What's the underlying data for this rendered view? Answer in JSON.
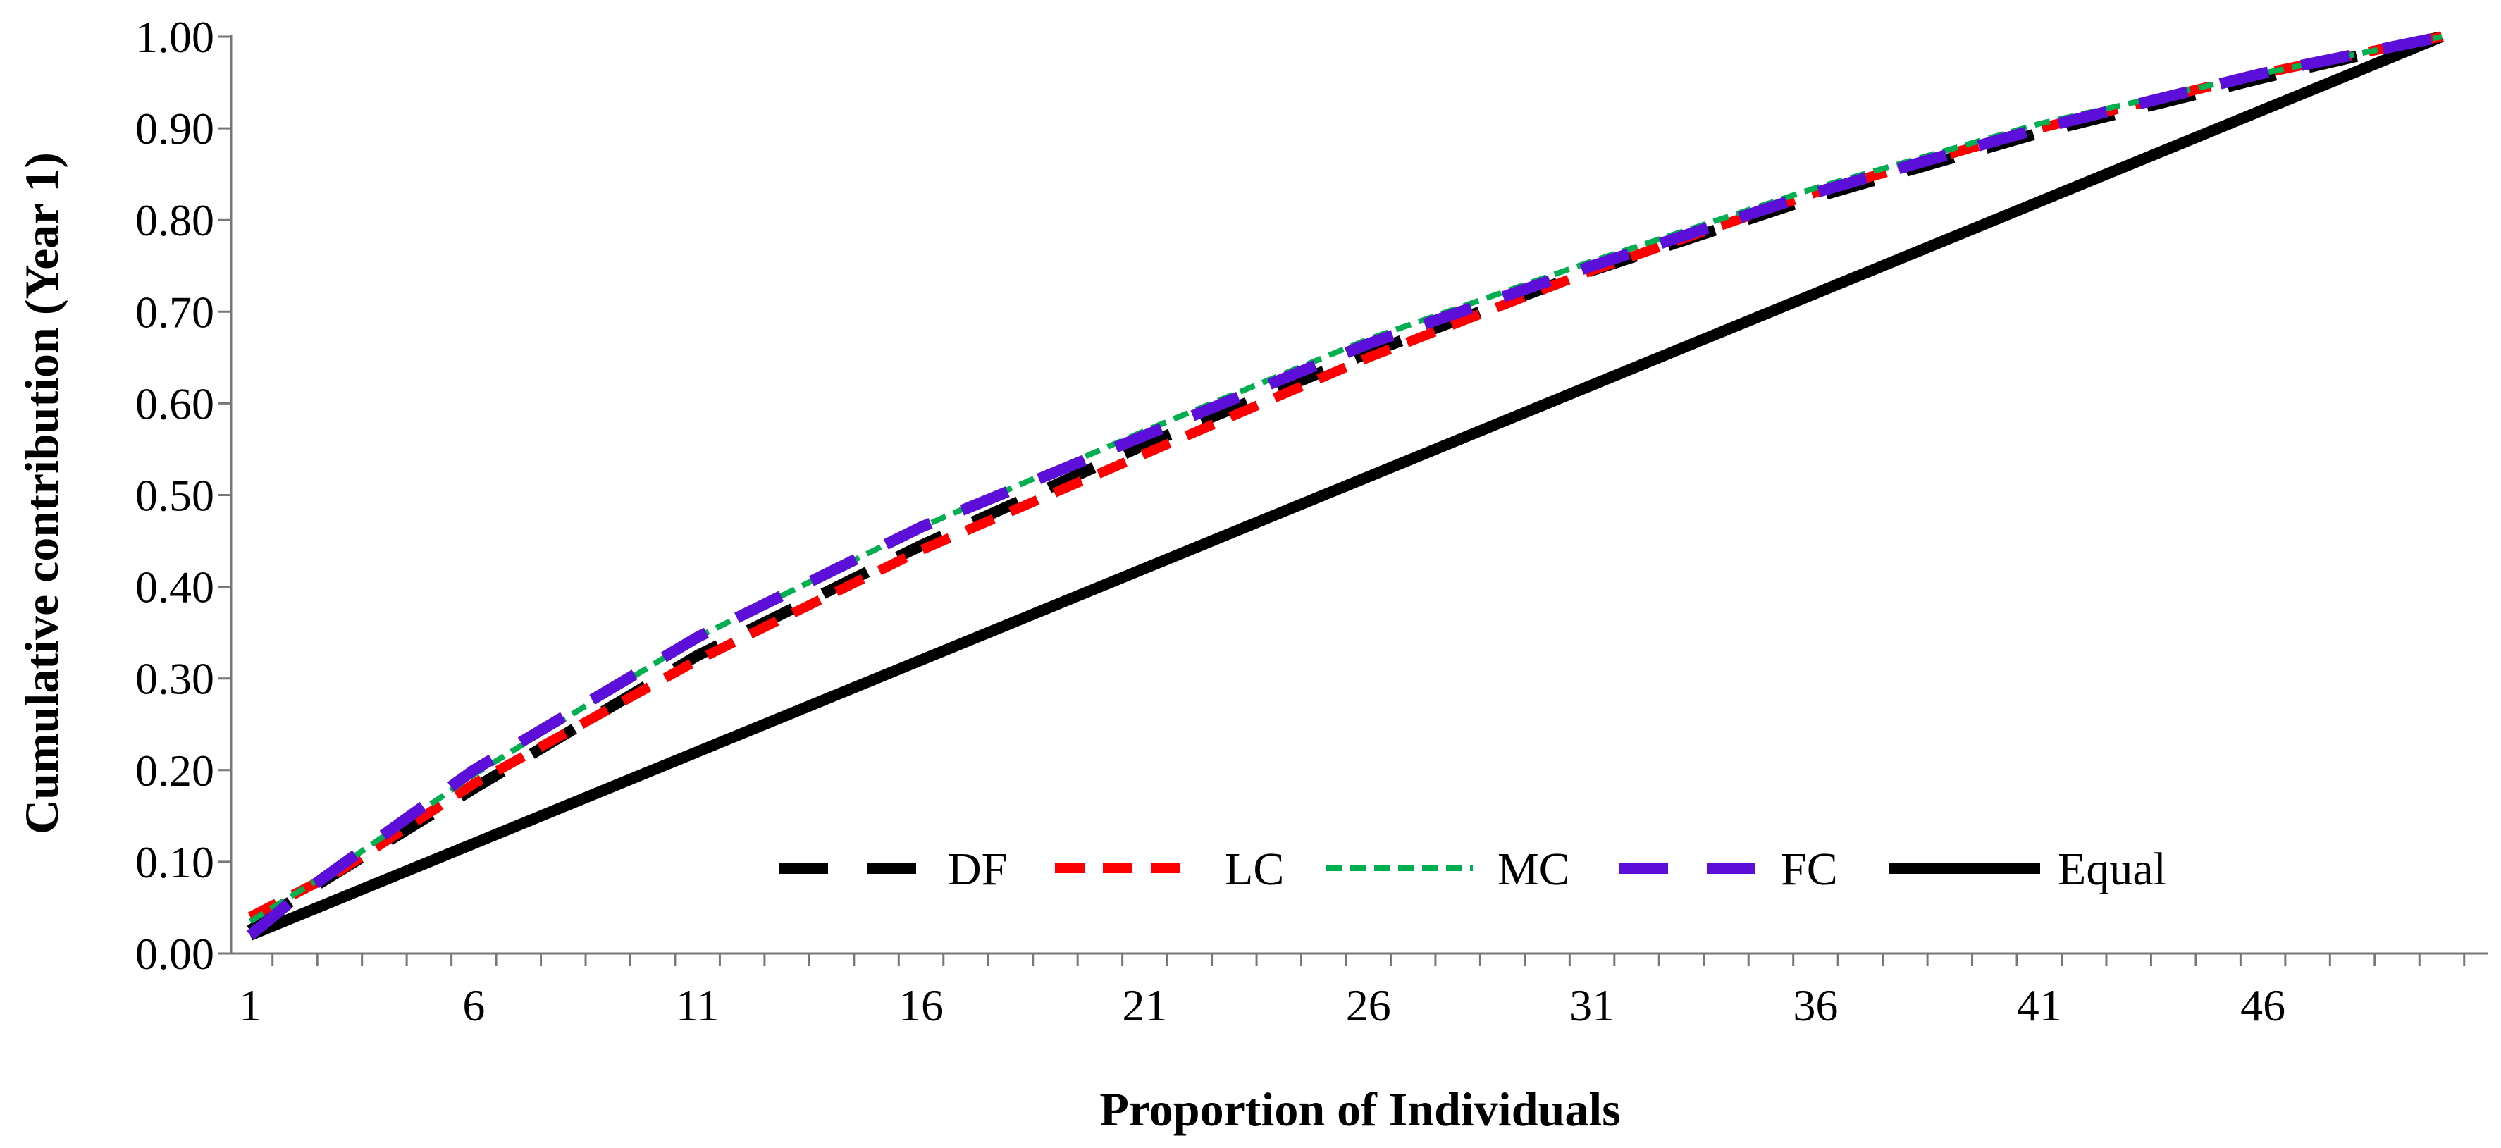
{
  "chart_data": {
    "type": "line",
    "title": "",
    "xlabel": "Proportion of Individuals",
    "ylabel": "Cumulative contribution (Year 1)",
    "xlim": [
      1,
      50
    ],
    "ylim": [
      0,
      1
    ],
    "x_tick_labels": [
      "1",
      "6",
      "11",
      "16",
      "21",
      "26",
      "31",
      "36",
      "41",
      "46"
    ],
    "x_tick_values": [
      1,
      6,
      11,
      16,
      21,
      26,
      31,
      36,
      41,
      46
    ],
    "y_tick_labels": [
      "0.00",
      "0.10",
      "0.20",
      "0.30",
      "0.40",
      "0.50",
      "0.60",
      "0.70",
      "0.80",
      "0.90",
      "1.00"
    ],
    "y_tick_values": [
      0,
      0.1,
      0.2,
      0.3,
      0.4,
      0.5,
      0.6,
      0.7,
      0.8,
      0.9,
      1.0
    ],
    "grid": false,
    "legend_position": "bottom-center",
    "series": [
      {
        "name": "DF",
        "color": "#000000",
        "style": "long-dash",
        "x": [
          1,
          2,
          3,
          6,
          11,
          16,
          21,
          26,
          31,
          36,
          41,
          46,
          50
        ],
        "y": [
          0.025,
          0.06,
          0.09,
          0.18,
          0.325,
          0.445,
          0.555,
          0.655,
          0.745,
          0.825,
          0.895,
          0.955,
          1.0
        ]
      },
      {
        "name": "LC",
        "color": "#ff0000",
        "style": "dash",
        "x": [
          1,
          2,
          3,
          6,
          11,
          16,
          21,
          26,
          31,
          36,
          41,
          46,
          50
        ],
        "y": [
          0.04,
          0.065,
          0.09,
          0.185,
          0.32,
          0.44,
          0.545,
          0.65,
          0.745,
          0.83,
          0.9,
          0.96,
          1.0
        ]
      },
      {
        "name": "MC",
        "color": "#00b050",
        "style": "short-dash",
        "x": [
          1,
          2,
          3,
          6,
          11,
          16,
          21,
          26,
          31,
          36,
          41,
          46,
          50
        ],
        "y": [
          0.035,
          0.065,
          0.095,
          0.195,
          0.345,
          0.465,
          0.57,
          0.67,
          0.755,
          0.835,
          0.905,
          0.96,
          1.0
        ]
      },
      {
        "name": "FC",
        "color": "#5b0fd8",
        "style": "long-dash",
        "x": [
          1,
          2,
          3,
          6,
          11,
          16,
          21,
          26,
          31,
          36,
          41,
          46,
          50
        ],
        "y": [
          0.02,
          0.06,
          0.095,
          0.2,
          0.345,
          0.465,
          0.565,
          0.665,
          0.75,
          0.83,
          0.9,
          0.96,
          1.0
        ]
      },
      {
        "name": "Equal",
        "color": "#000000",
        "style": "solid",
        "x": [
          1,
          50
        ],
        "y": [
          0.02,
          1.0
        ]
      }
    ]
  }
}
